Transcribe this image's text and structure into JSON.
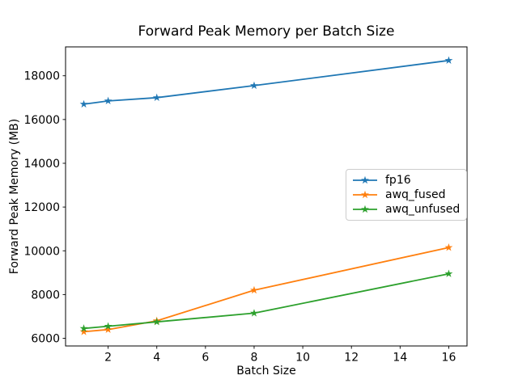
{
  "chart_data": {
    "type": "line",
    "title": "Forward Peak Memory per Batch Size",
    "xlabel": "Batch Size",
    "ylabel": "Forward Peak Memory (MB)",
    "x": [
      1,
      2,
      4,
      8,
      16
    ],
    "series": [
      {
        "name": "fp16",
        "color": "#1f77b4",
        "marker": "star",
        "values": [
          16700,
          16850,
          17000,
          17550,
          18700
        ]
      },
      {
        "name": "awq_fused",
        "color": "#ff7f0e",
        "marker": "star",
        "values": [
          6300,
          6400,
          6800,
          8200,
          10150
        ]
      },
      {
        "name": "awq_unfused",
        "color": "#2ca02c",
        "marker": "star",
        "values": [
          6450,
          6550,
          6750,
          7150,
          8950
        ]
      }
    ],
    "xticks": [
      2,
      4,
      6,
      8,
      10,
      12,
      14,
      16
    ],
    "yticks": [
      6000,
      8000,
      10000,
      12000,
      14000,
      16000,
      18000
    ],
    "xlim": [
      0.25,
      16.75
    ],
    "ylim": [
      5650,
      19320
    ],
    "grid": false,
    "legend_position": "center-right",
    "background": "#ffffff",
    "spine_color": "#000000",
    "tick_label_color": "#000000"
  }
}
